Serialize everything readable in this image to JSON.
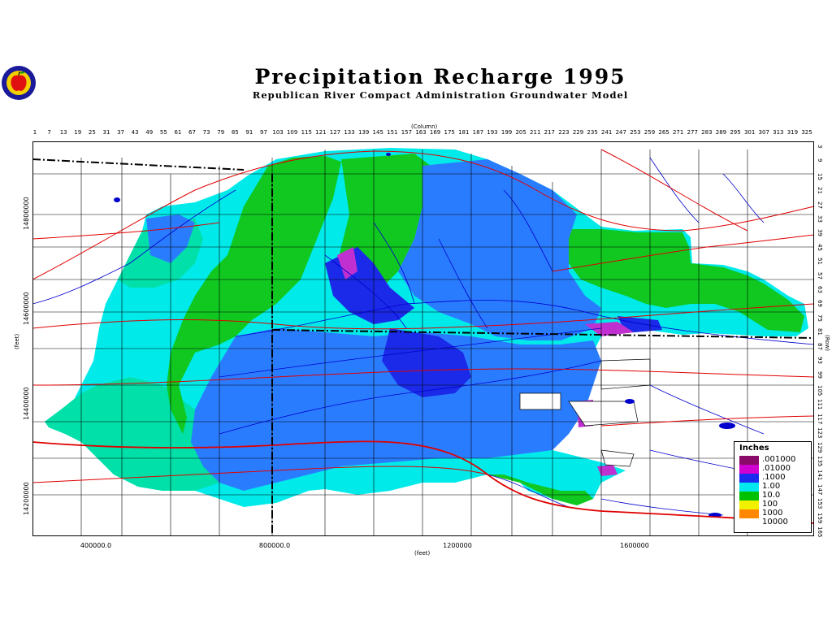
{
  "title": "Precipitation Recharge 1995",
  "subtitle": "Republican River Compact Administration Groundwater Model",
  "logo": {
    "name": "apple-seal-logo",
    "colors": [
      "#1a1a9a",
      "#e01010",
      "#f2d000"
    ]
  },
  "column_axis": {
    "title": "(Column)",
    "ticks": [
      "1",
      "7",
      "13",
      "19",
      "25",
      "31",
      "37",
      "43",
      "49",
      "55",
      "61",
      "67",
      "73",
      "79",
      "85",
      "91",
      "97",
      "103",
      "109",
      "115",
      "121",
      "127",
      "133",
      "139",
      "145",
      "151",
      "157",
      "163",
      "169",
      "175",
      "181",
      "187",
      "193",
      "199",
      "205",
      "211",
      "217",
      "223",
      "229",
      "235",
      "241",
      "247",
      "253",
      "259",
      "265",
      "271",
      "277",
      "283",
      "289",
      "295",
      "301",
      "307",
      "313",
      "319",
      "325"
    ]
  },
  "row_axis": {
    "title": "(Row)",
    "ticks": [
      "3",
      "9",
      "15",
      "21",
      "27",
      "33",
      "39",
      "45",
      "51",
      "57",
      "63",
      "69",
      "75",
      "81",
      "87",
      "93",
      "99",
      "105",
      "111",
      "117",
      "123",
      "129",
      "135",
      "141",
      "147",
      "153",
      "159",
      "165"
    ]
  },
  "y_feet_axis": {
    "title": "(feet)",
    "ticks": [
      "14800000",
      "14600000",
      "14400000",
      "14200000"
    ]
  },
  "x_feet_axis": {
    "title": "(feet)",
    "ticks": [
      "400000.0",
      "800000.0",
      "1200000",
      "1600000"
    ]
  },
  "legend": {
    "title": "Inches",
    "items": [
      {
        "label": ".001000",
        "color": "#8a0a6a"
      },
      {
        "label": ".01000",
        "color": "#d000d0"
      },
      {
        "label": ".1000",
        "color": "#1a2aee"
      },
      {
        "label": "1.00",
        "color": "#00e8ee"
      },
      {
        "label": "10.0",
        "color": "#00c000"
      },
      {
        "label": "100",
        "color": "#f0f000"
      },
      {
        "label": "1000",
        "color": "#ff8800"
      },
      {
        "label": "10000",
        "color": "#ffffff"
      }
    ]
  },
  "colors": {
    "region_cyan": "#00eaea",
    "region_teal": "#00e0a8",
    "region_green": "#10c820",
    "region_blue": "#2a7cff",
    "region_dark_blue": "#1a2ae8",
    "region_magenta": "#c030d0",
    "roads": "#e00000",
    "rivers": "#0000cc",
    "boundaries": "#000000"
  }
}
